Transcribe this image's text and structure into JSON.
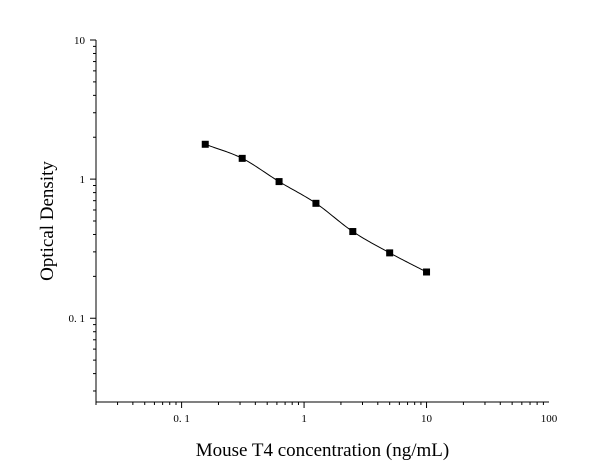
{
  "chart_data": {
    "type": "scatter",
    "title": "",
    "xlabel": "Mouse T4 concentration (ng/mL)",
    "ylabel": "Optical Density",
    "x_scale": "log",
    "y_scale": "log",
    "xlim": [
      0.02,
      100
    ],
    "ylim": [
      0.025,
      10
    ],
    "x_ticks": [
      {
        "value": 0.1,
        "label": "0. 1"
      },
      {
        "value": 1,
        "label": "1"
      },
      {
        "value": 10,
        "label": "10"
      },
      {
        "value": 100,
        "label": "100"
      }
    ],
    "y_ticks": [
      {
        "value": 0.1,
        "label": "0. 1"
      },
      {
        "value": 1,
        "label": "1"
      },
      {
        "value": 10,
        "label": "10"
      }
    ],
    "grid": false,
    "series": [
      {
        "x": [
          0.156,
          0.3125,
          0.625,
          1.25,
          2.5,
          5,
          10
        ],
        "y": [
          1.78,
          1.41,
          0.96,
          0.67,
          0.42,
          0.295,
          0.215
        ],
        "marker": "square",
        "fit_line": true,
        "color": "#000000"
      }
    ]
  }
}
